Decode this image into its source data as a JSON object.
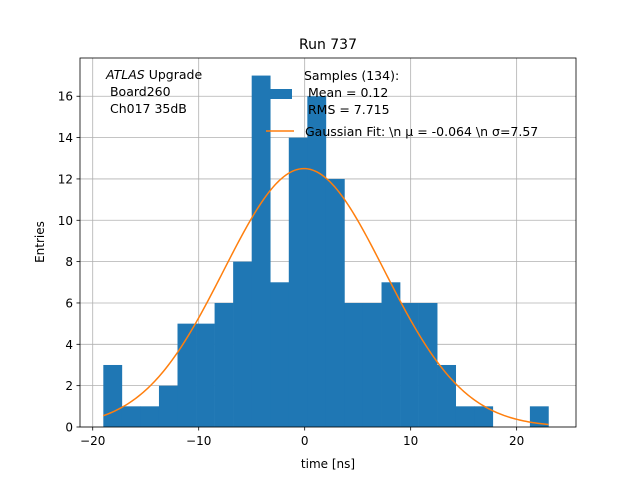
{
  "chart_data": {
    "type": "bar",
    "title": "Run 737",
    "xlabel": "time [ns]",
    "ylabel": "Entries",
    "xlim": [
      -21.2,
      25.6
    ],
    "ylim": [
      0,
      17.85
    ],
    "xticks": [
      -20,
      -10,
      0,
      10,
      20
    ],
    "yticks": [
      0,
      2,
      4,
      6,
      8,
      10,
      12,
      14,
      16
    ],
    "grid": true,
    "annotation": {
      "italic": "ATLAS",
      "rest": " Upgrade",
      "line2": " Board260",
      "line3": " Ch017 35dB"
    },
    "legend": {
      "position": "top-right",
      "histogram_label_lines": [
        "Samples (134):",
        " Mean = 0.12",
        " RMS = 7.715"
      ],
      "fit_label": "Gaussian Fit: \\n μ = -0.064 \\n σ=7.57"
    },
    "histogram": {
      "name": "Samples (134)",
      "color": "#1f77b4",
      "bin_edges": [
        -19.0,
        -17.25,
        -15.5,
        -13.75,
        -12.0,
        -10.25,
        -8.5,
        -6.75,
        -5.0,
        -3.25,
        -1.5,
        0.25,
        2.0,
        3.75,
        5.5,
        7.25,
        9.0,
        10.75,
        12.5,
        14.25,
        16.0,
        17.75,
        19.5,
        21.25,
        23.0
      ],
      "counts": [
        3,
        1,
        1,
        2,
        5,
        5,
        6,
        8,
        17,
        7,
        14,
        16,
        12,
        6,
        6,
        7,
        6,
        6,
        3,
        1,
        1,
        0,
        0,
        1
      ]
    },
    "fit": {
      "name": "Gaussian Fit",
      "color": "#ff7f0e",
      "mu": -0.064,
      "sigma": 7.57,
      "amplitude": 12.5,
      "x_range": [
        -19,
        23
      ]
    }
  }
}
